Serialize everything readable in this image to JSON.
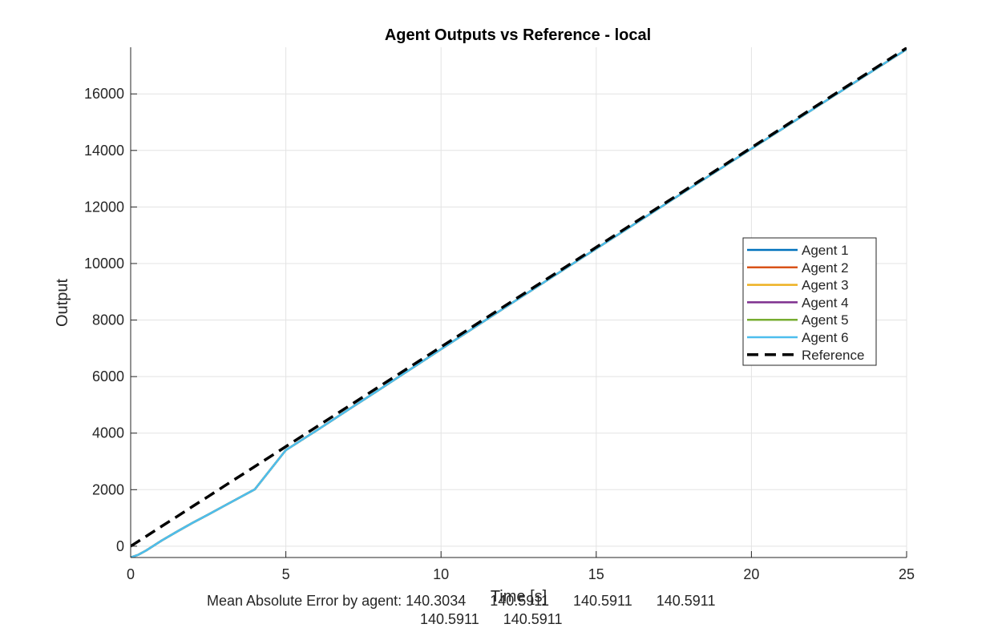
{
  "chart_data": {
    "type": "line",
    "title": "Agent Outputs vs Reference - local",
    "xlabel": "Time [s]",
    "ylabel": "Output",
    "xlim": [
      0,
      25
    ],
    "ylim": [
      -400,
      17650
    ],
    "xticks": [
      0,
      5,
      10,
      15,
      20,
      25
    ],
    "yticks": [
      0,
      2000,
      4000,
      6000,
      8000,
      10000,
      12000,
      14000,
      16000
    ],
    "grid": true,
    "legend_position": "right",
    "x": [
      0,
      0.25,
      0.5,
      1,
      1.5,
      2,
      2.5,
      3,
      4,
      5,
      6,
      7,
      8,
      9,
      10,
      12,
      14,
      16,
      18,
      20,
      22,
      24,
      25
    ],
    "series": [
      {
        "name": "Agent 1",
        "color": "#0072BD",
        "dash": false,
        "values": [
          -400,
          -300,
          -150,
          200,
          520,
          830,
          1120,
          1420,
          2010,
          3400,
          4100,
          4820,
          5530,
          6250,
          6970,
          8400,
          9820,
          11230,
          12650,
          14060,
          15470,
          16880,
          17580
        ]
      },
      {
        "name": "Agent 2",
        "color": "#D95319",
        "dash": false,
        "values": [
          -400,
          -300,
          -150,
          200,
          520,
          830,
          1120,
          1420,
          2010,
          3400,
          4100,
          4820,
          5530,
          6250,
          6970,
          8400,
          9820,
          11230,
          12650,
          14060,
          15470,
          16880,
          17580
        ]
      },
      {
        "name": "Agent 3",
        "color": "#EDB120",
        "dash": false,
        "values": [
          -400,
          -300,
          -150,
          200,
          520,
          830,
          1120,
          1420,
          2010,
          3400,
          4100,
          4820,
          5530,
          6250,
          6970,
          8400,
          9820,
          11230,
          12650,
          14060,
          15470,
          16880,
          17580
        ]
      },
      {
        "name": "Agent 4",
        "color": "#7E2F8E",
        "dash": false,
        "values": [
          -400,
          -300,
          -150,
          200,
          520,
          830,
          1120,
          1420,
          2010,
          3400,
          4100,
          4820,
          5530,
          6250,
          6970,
          8400,
          9820,
          11230,
          12650,
          14060,
          15470,
          16880,
          17580
        ]
      },
      {
        "name": "Agent 5",
        "color": "#77AC30",
        "dash": false,
        "values": [
          -400,
          -300,
          -150,
          200,
          520,
          830,
          1120,
          1420,
          2010,
          3400,
          4100,
          4820,
          5530,
          6250,
          6970,
          8400,
          9820,
          11230,
          12650,
          14060,
          15470,
          16880,
          17580
        ]
      },
      {
        "name": "Agent 6",
        "color": "#4DBEEE",
        "dash": false,
        "values": [
          -400,
          -300,
          -150,
          200,
          520,
          830,
          1120,
          1420,
          2010,
          3400,
          4100,
          4820,
          5530,
          6250,
          6970,
          8400,
          9820,
          11230,
          12650,
          14060,
          15470,
          16880,
          17580
        ]
      },
      {
        "name": "Reference",
        "color": "#000000",
        "dash": true,
        "values": [
          0,
          175,
          350,
          705,
          1055,
          1410,
          1760,
          2115,
          2820,
          3525,
          4230,
          4935,
          5640,
          6345,
          7050,
          8460,
          9870,
          11280,
          12690,
          14100,
          15510,
          16920,
          17625
        ]
      }
    ]
  },
  "caption": {
    "line1": "Mean Absolute Error by agent: 140.3034      140.5911      140.5911      140.5911",
    "line2": "140.5911      140.5911"
  }
}
